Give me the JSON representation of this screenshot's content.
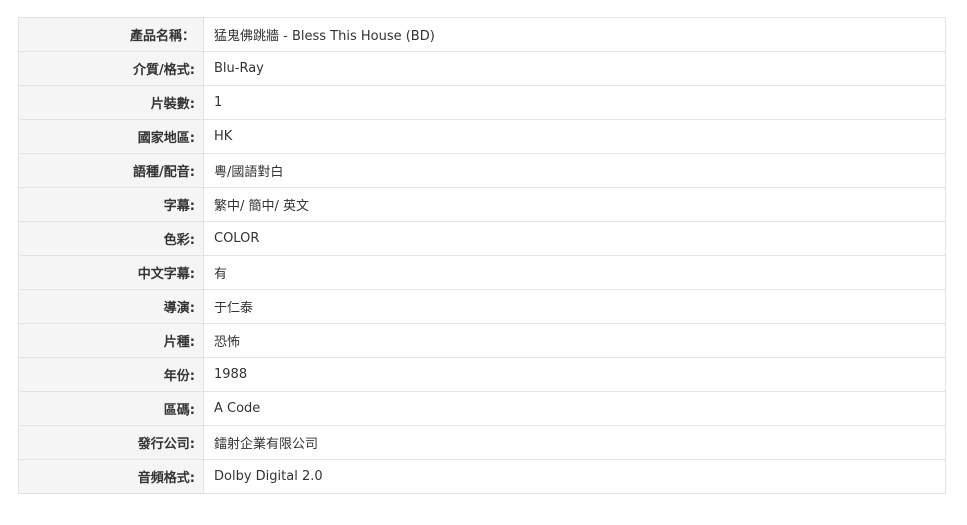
{
  "rows": [
    {
      "label": "產品名稱：",
      "value": "猛鬼佛跳牆 - Bless This House (BD)"
    },
    {
      "label": "介質/格式:",
      "value": "Blu-Ray"
    },
    {
      "label": "片裝數:",
      "value": "1"
    },
    {
      "label": "國家地區:",
      "value": "HK"
    },
    {
      "label": "語種/配音:",
      "value": "粵/國語對白"
    },
    {
      "label": "字幕:",
      "value": "繁中/ 簡中/ 英文"
    },
    {
      "label": "色彩:",
      "value": "COLOR"
    },
    {
      "label": "中文字幕:",
      "value": "有"
    },
    {
      "label": "導演:",
      "value": "于仁泰"
    },
    {
      "label": "片種:",
      "value": "恐怖"
    },
    {
      "label": "年份:",
      "value": "1988"
    },
    {
      "label": "區碼:",
      "value": "A Code"
    },
    {
      "label": "發行公司:",
      "value": "鐳射企業有限公司"
    },
    {
      "label": "音頻格式:",
      "value": "Dolby Digital 2.0"
    }
  ]
}
